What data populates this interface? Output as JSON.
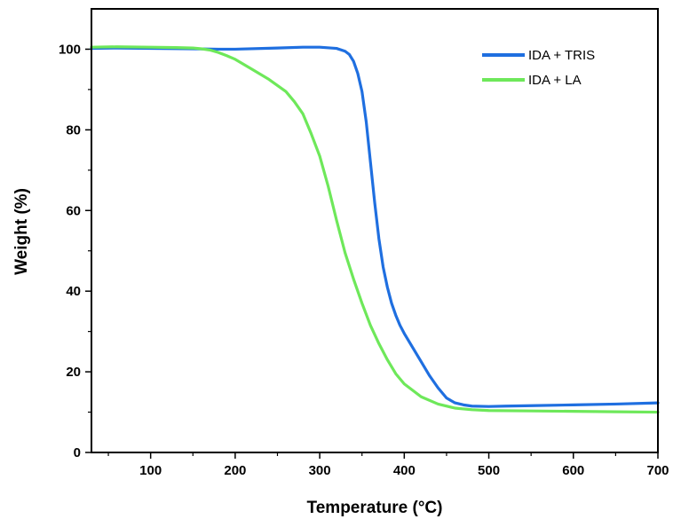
{
  "chart_data": {
    "type": "line",
    "xlabel": "Temperature (°C)",
    "ylabel": "Weight (%)",
    "xlim": [
      30,
      700
    ],
    "ylim": [
      0,
      110
    ],
    "xticks": [
      100,
      200,
      300,
      400,
      500,
      600,
      700
    ],
    "yticks": [
      0,
      20,
      40,
      60,
      80,
      100
    ],
    "grid": false,
    "legend_position": "top-right",
    "series": [
      {
        "name": "IDA + TRIS",
        "color": "#1f6fe0",
        "x": [
          30,
          60,
          100,
          150,
          180,
          200,
          250,
          280,
          300,
          320,
          330,
          335,
          340,
          345,
          350,
          355,
          360,
          365,
          370,
          375,
          380,
          385,
          390,
          395,
          400,
          410,
          420,
          430,
          440,
          450,
          460,
          470,
          480,
          500,
          520,
          550,
          600,
          650,
          700
        ],
        "y": [
          100.2,
          100.3,
          100.2,
          100.1,
          100.0,
          100.0,
          100.3,
          100.5,
          100.5,
          100.2,
          99.5,
          98.7,
          97.0,
          94.0,
          89.5,
          82.0,
          72.0,
          62.0,
          53.0,
          46.0,
          41.0,
          37.0,
          34.0,
          31.5,
          29.5,
          26.0,
          22.5,
          19.0,
          16.0,
          13.5,
          12.3,
          11.8,
          11.5,
          11.4,
          11.5,
          11.6,
          11.8,
          12.0,
          12.3
        ]
      },
      {
        "name": "IDA + LA",
        "color": "#6ee85a",
        "x": [
          30,
          60,
          100,
          130,
          150,
          160,
          170,
          180,
          190,
          200,
          220,
          240,
          260,
          270,
          280,
          290,
          300,
          310,
          320,
          330,
          340,
          350,
          360,
          370,
          380,
          390,
          400,
          420,
          440,
          460,
          480,
          500,
          550,
          600,
          650,
          700
        ],
        "y": [
          100.5,
          100.6,
          100.5,
          100.4,
          100.3,
          100.1,
          99.8,
          99.2,
          98.4,
          97.5,
          95.0,
          92.5,
          89.5,
          87.0,
          84.0,
          79.0,
          73.5,
          66.0,
          57.5,
          49.5,
          43.0,
          37.0,
          31.5,
          27.0,
          23.0,
          19.5,
          17.0,
          13.8,
          12.0,
          11.0,
          10.6,
          10.4,
          10.3,
          10.2,
          10.1,
          10.0
        ]
      }
    ]
  }
}
